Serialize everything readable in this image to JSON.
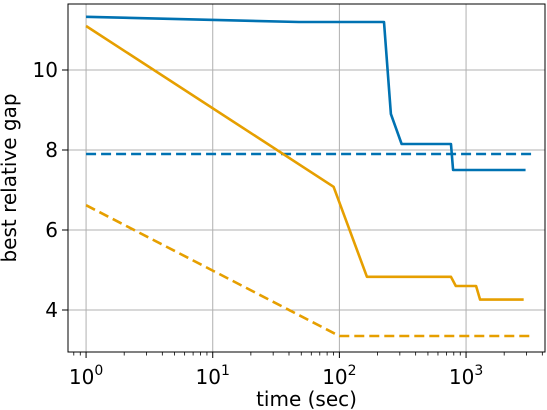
{
  "chart_data": {
    "type": "line",
    "title": "",
    "xlabel": "time (sec)",
    "ylabel": "best relative gap",
    "xscale": "log",
    "xlim": [
      0.72,
      4200
    ],
    "ylim": [
      2.95,
      11.65
    ],
    "grid": true,
    "legend": "none",
    "x_ticks": [
      {
        "value": 1,
        "base": "10",
        "exp": "0"
      },
      {
        "value": 10,
        "base": "10",
        "exp": "1"
      },
      {
        "value": 100,
        "base": "10",
        "exp": "2"
      },
      {
        "value": 1000,
        "base": "10",
        "exp": "3"
      }
    ],
    "y_ticks": [
      {
        "value": 4,
        "label": "4"
      },
      {
        "value": 6,
        "label": "6"
      },
      {
        "value": 8,
        "label": "8"
      },
      {
        "value": 10,
        "label": "10"
      }
    ],
    "series": [
      {
        "color": "#0072b2",
        "style": "solid",
        "x": [
          1,
          48,
          120,
          225,
          255,
          310,
          760,
          790,
          2950
        ],
        "y": [
          11.33,
          11.2,
          11.2,
          11.2,
          8.9,
          8.15,
          8.15,
          7.5,
          7.5
        ]
      },
      {
        "color": "#0072b2",
        "style": "dashed",
        "x": [
          1,
          3400
        ],
        "y": [
          7.9,
          7.9
        ]
      },
      {
        "color": "#e69f00",
        "style": "solid",
        "x": [
          1,
          90,
          165,
          760,
          830,
          1200,
          1290,
          2850
        ],
        "y": [
          11.1,
          7.08,
          4.83,
          4.83,
          4.6,
          4.6,
          4.26,
          4.26
        ]
      },
      {
        "color": "#e69f00",
        "style": "dashed",
        "x": [
          1,
          100,
          3400
        ],
        "y": [
          6.62,
          3.35,
          3.35
        ]
      }
    ]
  }
}
